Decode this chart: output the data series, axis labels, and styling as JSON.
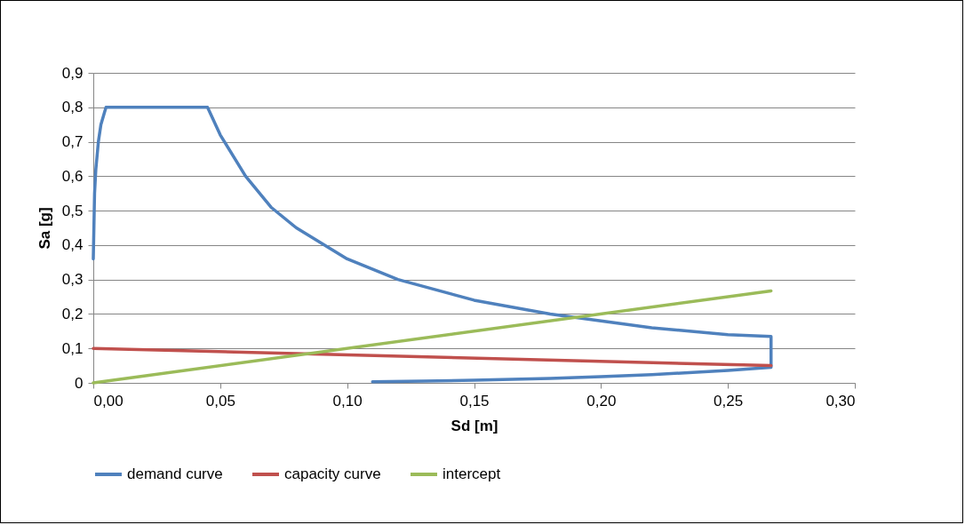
{
  "chart_data": {
    "type": "line",
    "xlabel": "Sd [m]",
    "ylabel": "Sa [g]",
    "xlim": [
      0,
      0.3
    ],
    "ylim": [
      0,
      0.9
    ],
    "xticks": [
      {
        "value": 0,
        "label": "0,00"
      },
      {
        "value": 0.05,
        "label": "0,05"
      },
      {
        "value": 0.1,
        "label": "0,10"
      },
      {
        "value": 0.15,
        "label": "0,15"
      },
      {
        "value": 0.2,
        "label": "0,20"
      },
      {
        "value": 0.25,
        "label": "0,25"
      },
      {
        "value": 0.3,
        "label": "0,30"
      }
    ],
    "yticks": [
      0,
      {
        "value": 0.1,
        "label": "0,1"
      },
      {
        "value": 0.2,
        "label": "0,2"
      },
      {
        "value": 0.3,
        "label": "0,3"
      },
      {
        "value": 0.4,
        "label": "0,4"
      },
      {
        "value": 0.5,
        "label": "0,5"
      },
      {
        "value": 0.6,
        "label": "0,6"
      },
      {
        "value": 0.7,
        "label": "0,7"
      },
      {
        "value": 0.8,
        "label": "0,8"
      },
      {
        "value": 0.9,
        "label": "0,9"
      }
    ],
    "grid": "y",
    "legend": "bottom",
    "series": [
      {
        "name": "demand curve",
        "color": "#4f81bd",
        "x": [
          0,
          0.0005,
          0.001,
          0.002,
          0.003,
          0.005,
          0.045,
          0.05,
          0.06,
          0.07,
          0.08,
          0.1,
          0.12,
          0.15,
          0.18,
          0.2,
          0.22,
          0.25,
          0.267,
          0.267,
          0.25,
          0.22,
          0.2,
          0.18,
          0.15,
          0.13,
          0.11
        ],
        "values": [
          0.36,
          0.55,
          0.62,
          0.7,
          0.75,
          0.8,
          0.8,
          0.72,
          0.6,
          0.51,
          0.45,
          0.36,
          0.3,
          0.24,
          0.2,
          0.18,
          0.16,
          0.14,
          0.135,
          0.045,
          0.036,
          0.024,
          0.018,
          0.013,
          0.008,
          0.005,
          0.003
        ]
      },
      {
        "name": "capacity curve",
        "color": "#c0504d",
        "x": [
          0,
          0.267
        ],
        "values": [
          0.1,
          0.05
        ]
      },
      {
        "name": "intercept",
        "color": "#9bbb59",
        "x": [
          0,
          0.267
        ],
        "values": [
          0,
          0.267
        ]
      }
    ]
  }
}
